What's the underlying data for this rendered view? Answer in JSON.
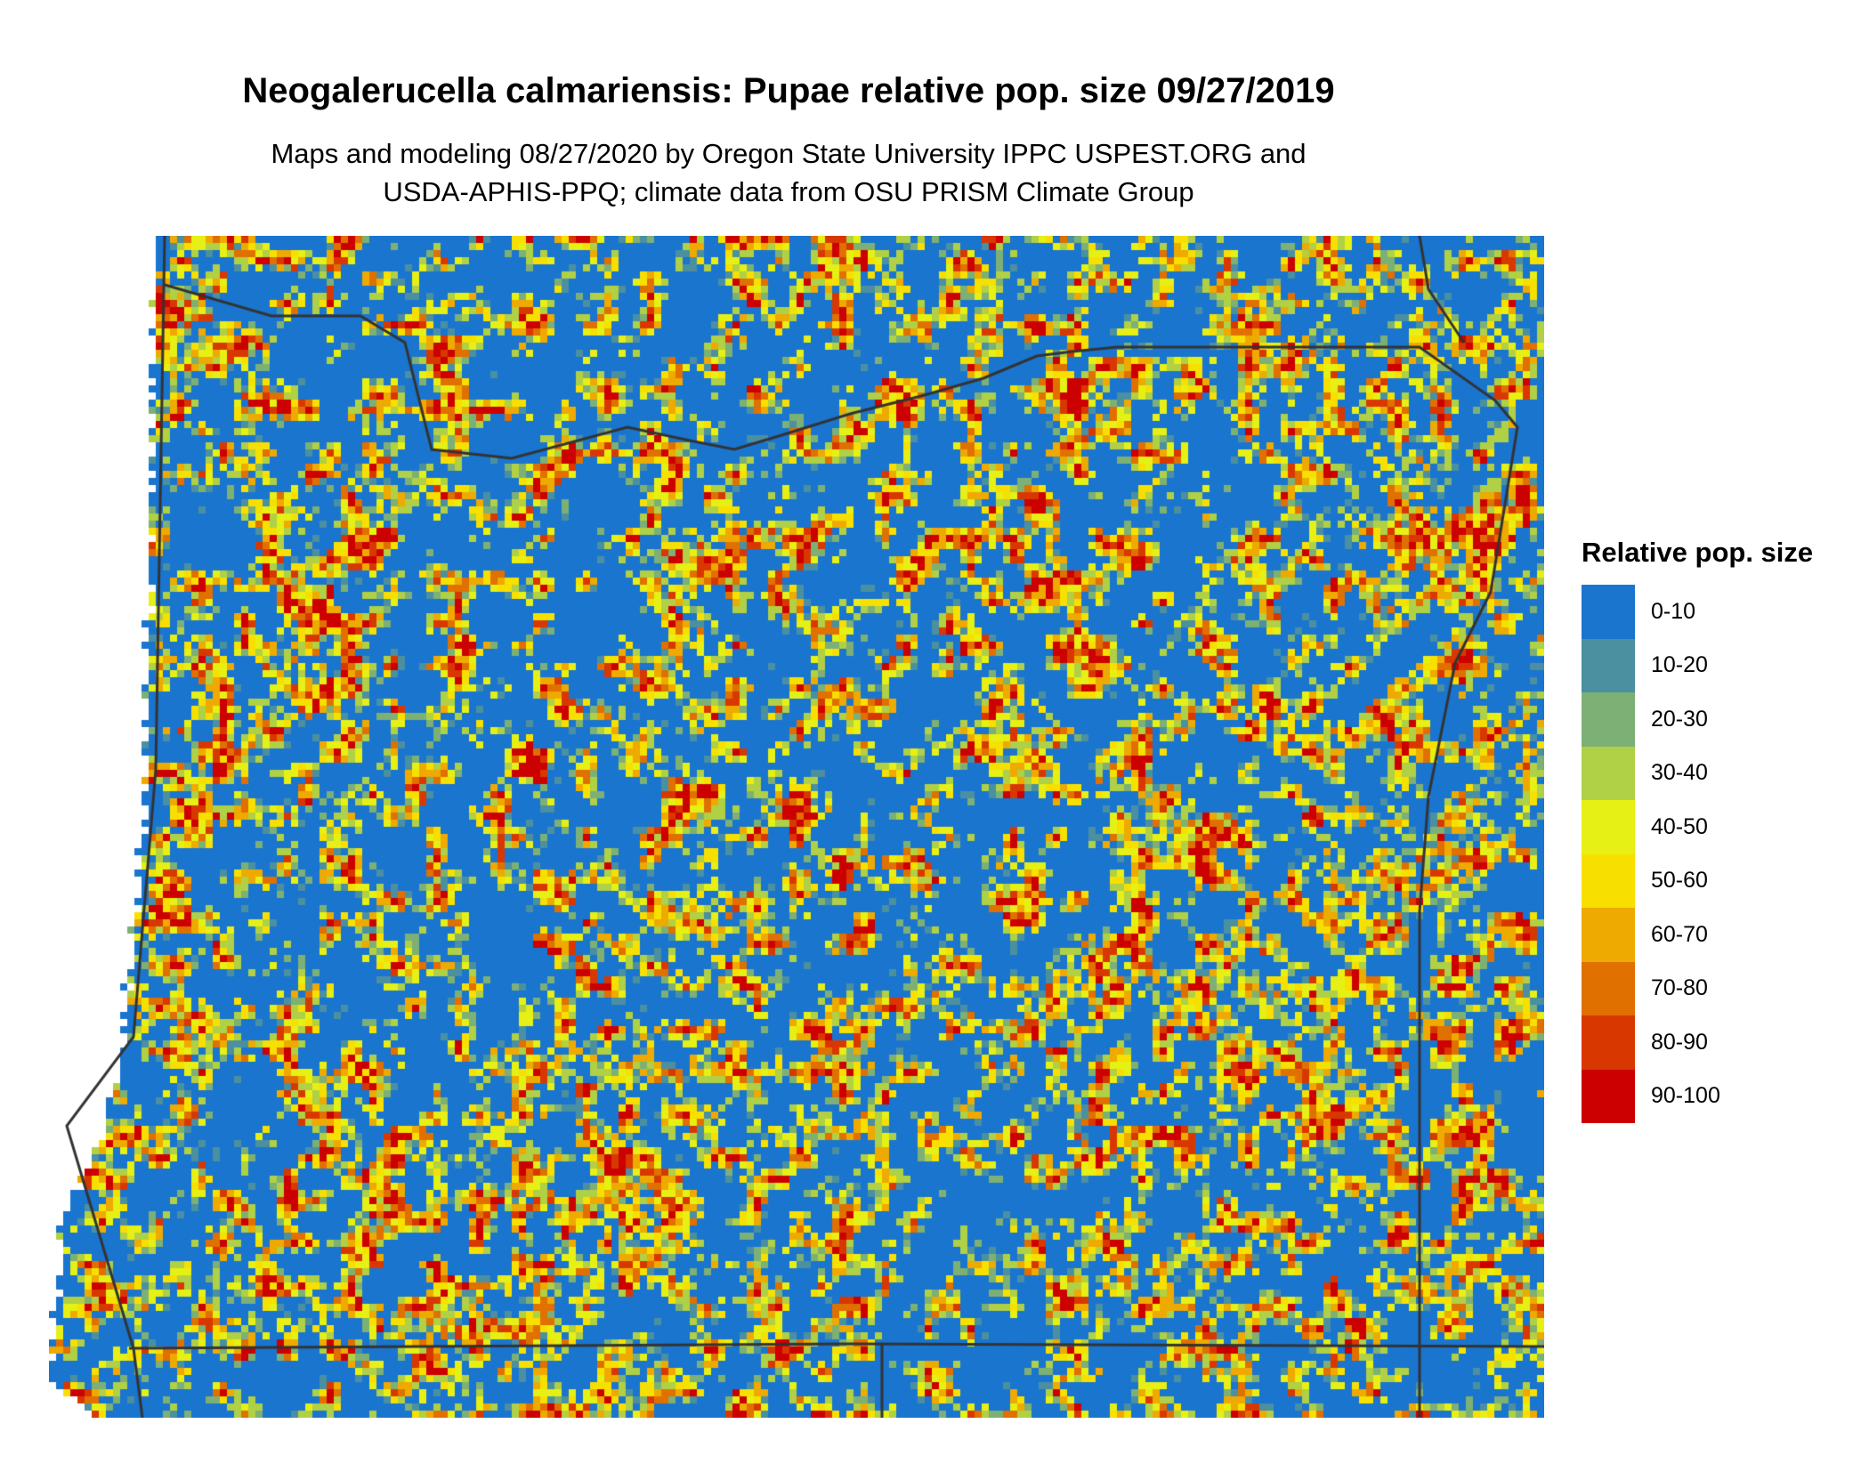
{
  "title": "Neogalerucella calmariensis: Pupae relative pop. size 09/27/2019",
  "subtitle_lines": [
    "Maps and modeling 08/27/2020 by Oregon State University IPPC USPEST.ORG and",
    "USDA-APHIS-PPQ; climate data from OSU PRISM Climate Group"
  ],
  "legend": {
    "title": "Relative pop. size",
    "items": [
      {
        "label": "0-10",
        "color": "#1A75CF"
      },
      {
        "label": "10-20",
        "color": "#4A90A0"
      },
      {
        "label": "20-30",
        "color": "#7DB075"
      },
      {
        "label": "30-40",
        "color": "#B0D045"
      },
      {
        "label": "40-50",
        "color": "#E6F015"
      },
      {
        "label": "50-60",
        "color": "#F7E000"
      },
      {
        "label": "60-70",
        "color": "#EEAA00"
      },
      {
        "label": "70-80",
        "color": "#E07000"
      },
      {
        "label": "80-90",
        "color": "#D83800"
      },
      {
        "label": "90-100",
        "color": "#CC0000"
      }
    ]
  },
  "boundary_color": "#333333"
}
